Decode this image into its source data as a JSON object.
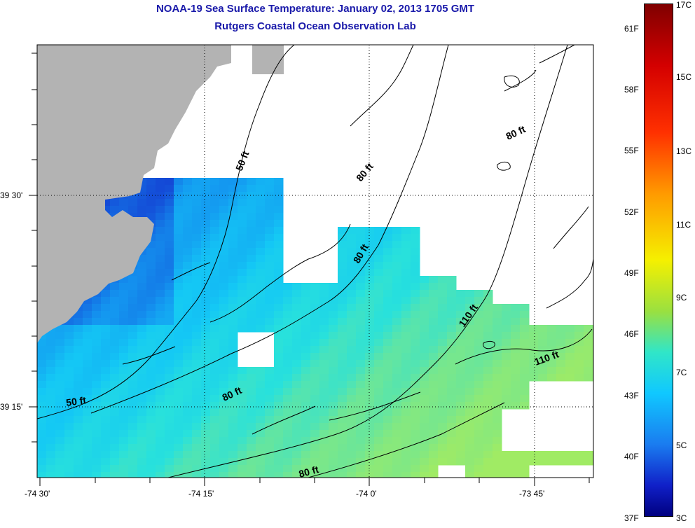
{
  "title": "NOAA-19 Sea Surface Temperature:  January 02, 2013 1705 GMT",
  "subtitle": "Rutgers Coastal Ocean Observation Lab",
  "x_ticks": [
    "-74 30'",
    "-74 15'",
    "-74 0'",
    "-73 45'"
  ],
  "y_ticks": [
    "39 30'",
    "39 15'"
  ],
  "contour_labels": [
    "50 ft",
    "80 ft",
    "80 ft",
    "80 ft",
    "110 ft",
    "110 ft",
    "50 ft",
    "80 ft",
    "80 ft"
  ],
  "colorbar": {
    "fahrenheit": [
      "61F",
      "58F",
      "55F",
      "52F",
      "49F",
      "46F",
      "43F",
      "40F",
      "37F"
    ],
    "celsius": [
      "17C",
      "15C",
      "13C",
      "11C",
      "9C",
      "7C",
      "5C",
      "3C"
    ]
  },
  "colors": {
    "land": "#b3b3b3",
    "title": "#1a1aaa"
  }
}
